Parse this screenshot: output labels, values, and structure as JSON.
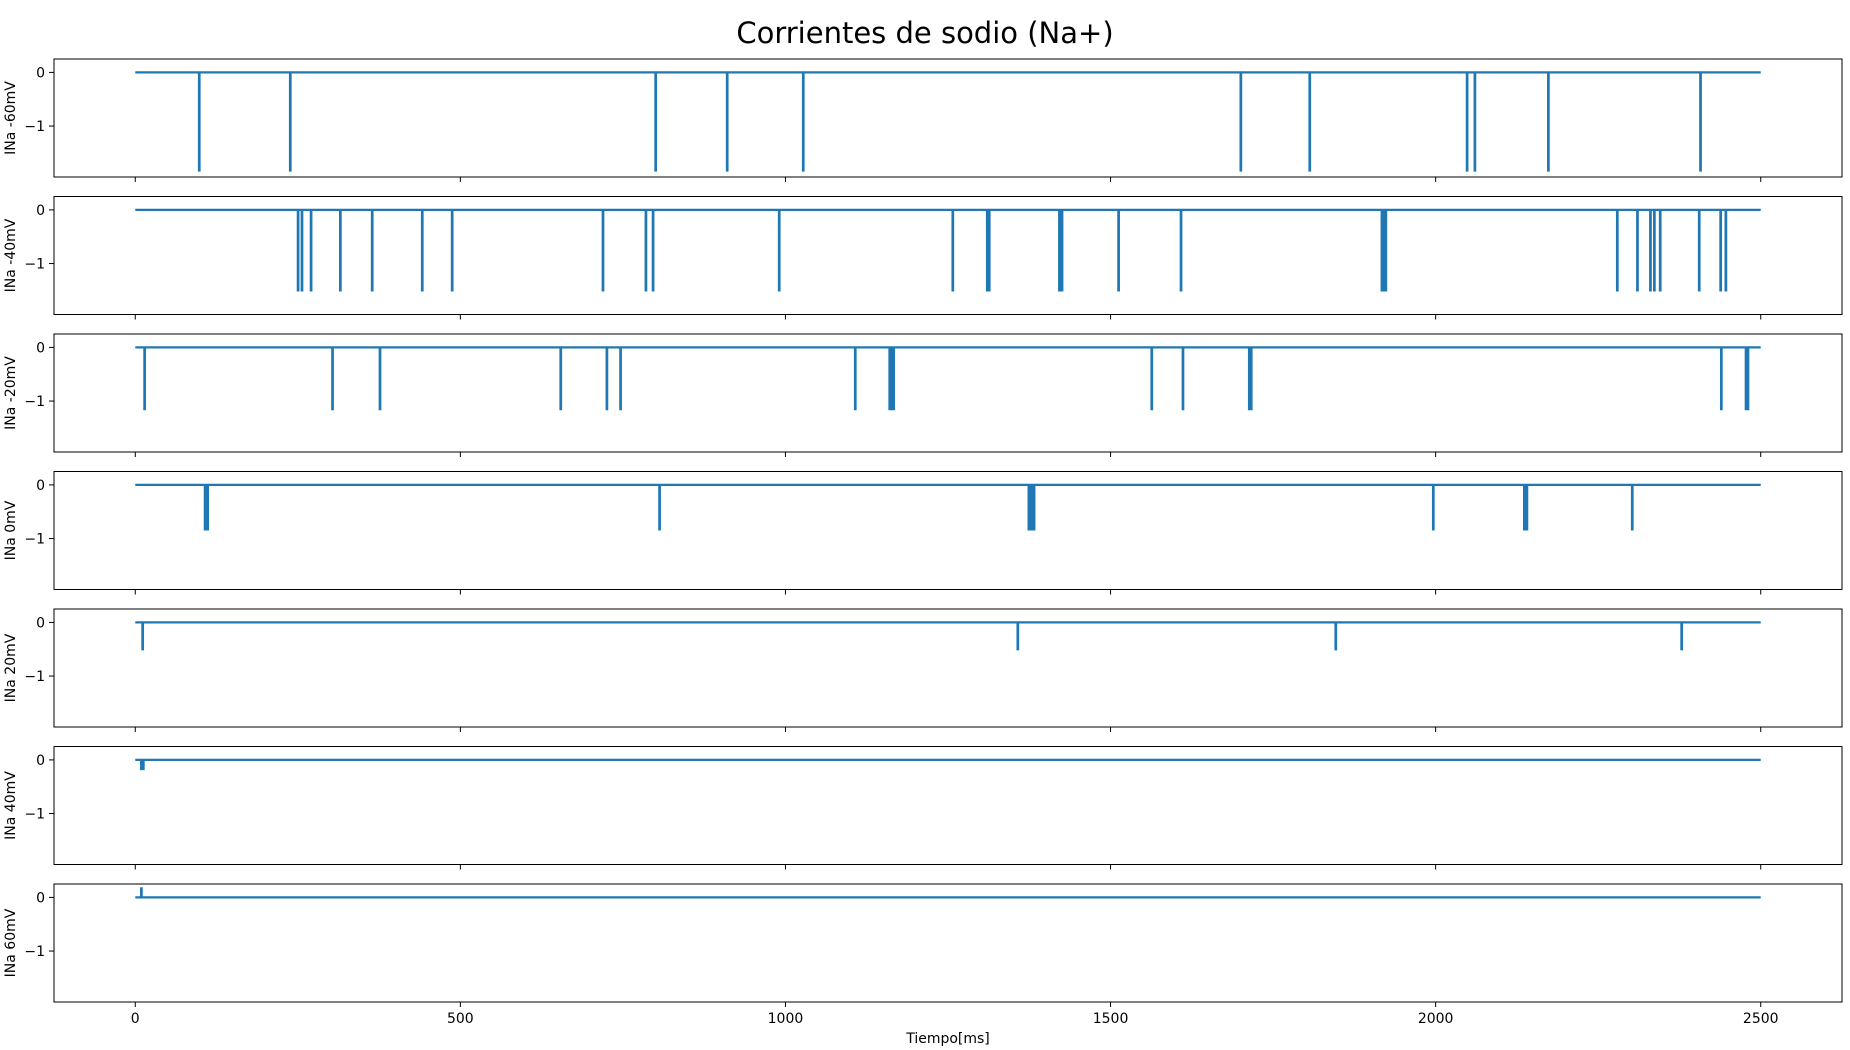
{
  "chart_data": {
    "type": "line",
    "title": "Corrientes de sodio (Na+)",
    "xlabel": "Tiempo[ms]",
    "xlim": [
      -125,
      2625
    ],
    "ylim": [
      -1.95,
      0.25
    ],
    "x_ticks": [
      0,
      500,
      1000,
      1500,
      2000,
      2500
    ],
    "y_ticks": [
      0,
      -1
    ],
    "t_start": 0,
    "t_end": 2500,
    "color": "#1f77b4",
    "grid": false,
    "panels": [
      {
        "ylabel": "INa -60mV",
        "events": [
          {
            "t": 98,
            "amp": -1.83
          },
          {
            "t": 238,
            "amp": -1.83
          },
          {
            "t": 800,
            "amp": -1.83
          },
          {
            "t": 910,
            "amp": -1.83
          },
          {
            "t": 1027,
            "amp": -1.83
          },
          {
            "t": 1700,
            "amp": -1.83
          },
          {
            "t": 1806,
            "amp": -1.83
          },
          {
            "t": 2048,
            "amp": -1.83
          },
          {
            "t": 2060,
            "amp": -1.83
          },
          {
            "t": 2173,
            "amp": -1.83
          },
          {
            "t": 2407,
            "amp": -1.83
          }
        ]
      },
      {
        "ylabel": "INa -40mV",
        "events": [
          {
            "t": 250,
            "amp": -1.5
          },
          {
            "t": 256,
            "amp": -1.5
          },
          {
            "t": 270,
            "amp": -1.5
          },
          {
            "t": 315,
            "amp": -1.5
          },
          {
            "t": 364,
            "amp": -1.5
          },
          {
            "t": 441,
            "amp": -1.5
          },
          {
            "t": 487,
            "amp": -1.5
          },
          {
            "t": 719,
            "amp": -1.5
          },
          {
            "t": 785,
            "amp": -1.5
          },
          {
            "t": 796,
            "amp": -1.5
          },
          {
            "t": 990,
            "amp": -1.5
          },
          {
            "t": 1257,
            "amp": -1.5
          },
          {
            "t": 1310,
            "amp": -1.5
          },
          {
            "t": 1313,
            "amp": -1.5
          },
          {
            "t": 1421,
            "amp": -1.5
          },
          {
            "t": 1425,
            "amp": -1.5
          },
          {
            "t": 1512,
            "amp": -1.5
          },
          {
            "t": 1608,
            "amp": -1.5
          },
          {
            "t": 1917,
            "amp": -1.5
          },
          {
            "t": 1920,
            "amp": -1.5
          },
          {
            "t": 1923,
            "amp": -1.5
          },
          {
            "t": 2279,
            "amp": -1.5
          },
          {
            "t": 2310,
            "amp": -1.5
          },
          {
            "t": 2330,
            "amp": -1.5
          },
          {
            "t": 2336,
            "amp": -1.5
          },
          {
            "t": 2345,
            "amp": -1.5
          },
          {
            "t": 2405,
            "amp": -1.5
          },
          {
            "t": 2438,
            "amp": -1.5
          },
          {
            "t": 2446,
            "amp": -1.5
          }
        ]
      },
      {
        "ylabel": "INa -20mV",
        "events": [
          {
            "t": 14,
            "amp": -1.15
          },
          {
            "t": 303,
            "amp": -1.15
          },
          {
            "t": 376,
            "amp": -1.15
          },
          {
            "t": 654,
            "amp": -1.15
          },
          {
            "t": 725,
            "amp": -1.15
          },
          {
            "t": 746,
            "amp": -1.15
          },
          {
            "t": 1107,
            "amp": -1.15
          },
          {
            "t": 1160,
            "amp": -1.15
          },
          {
            "t": 1163,
            "amp": -1.15
          },
          {
            "t": 1166,
            "amp": -1.15
          },
          {
            "t": 1563,
            "amp": -1.15
          },
          {
            "t": 1611,
            "amp": -1.15
          },
          {
            "t": 1713,
            "amp": -1.15
          },
          {
            "t": 1716,
            "amp": -1.15
          },
          {
            "t": 2439,
            "amp": -1.15
          },
          {
            "t": 2477,
            "amp": -1.15
          },
          {
            "t": 2480,
            "amp": -1.15
          }
        ]
      },
      {
        "ylabel": "INa 0mV",
        "events": [
          {
            "t": 107,
            "amp": -0.83
          },
          {
            "t": 111,
            "amp": -0.83
          },
          {
            "t": 806,
            "amp": -0.83
          },
          {
            "t": 1374,
            "amp": -0.83
          },
          {
            "t": 1378,
            "amp": -0.83
          },
          {
            "t": 1382,
            "amp": -0.83
          },
          {
            "t": 1996,
            "amp": -0.83
          },
          {
            "t": 2136,
            "amp": -0.83
          },
          {
            "t": 2140,
            "amp": -0.83
          },
          {
            "t": 2302,
            "amp": -0.83
          }
        ]
      },
      {
        "ylabel": "INa 20mV",
        "events": [
          {
            "t": 11,
            "amp": -0.5
          },
          {
            "t": 1357,
            "amp": -0.5
          },
          {
            "t": 1846,
            "amp": -0.5
          },
          {
            "t": 2378,
            "amp": -0.5
          }
        ]
      },
      {
        "ylabel": "INa 40mV",
        "events": [
          {
            "t": 9,
            "amp": -0.17
          },
          {
            "t": 12,
            "amp": -0.17
          }
        ]
      },
      {
        "ylabel": "INa 60mV",
        "events": [
          {
            "t": 9,
            "amp": 0.17
          }
        ]
      }
    ]
  }
}
